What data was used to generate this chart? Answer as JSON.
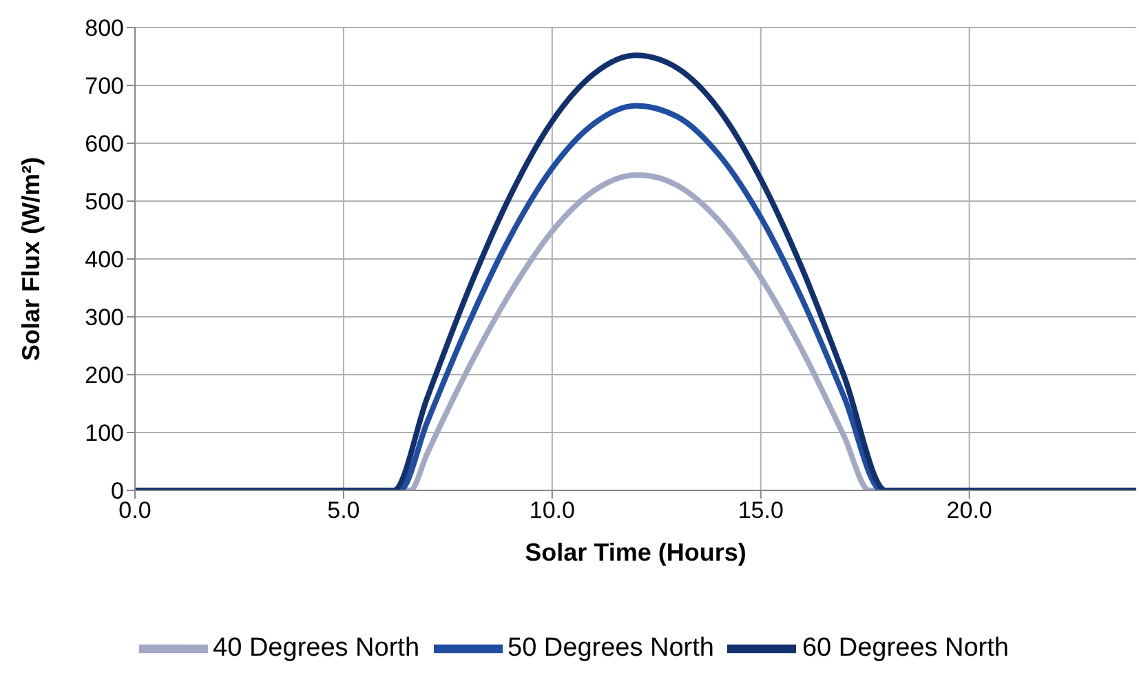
{
  "chart_data": {
    "type": "line",
    "xlabel": "Solar Time (Hours)",
    "ylabel": "Solar Flux (W/m²)",
    "xlim": [
      0,
      24
    ],
    "xticks": [
      {
        "value": 0,
        "label": "0.0"
      },
      {
        "value": 5,
        "label": "5.0"
      },
      {
        "value": 10,
        "label": "10.0"
      },
      {
        "value": 15,
        "label": "15.0"
      },
      {
        "value": 20,
        "label": "20.0"
      }
    ],
    "ylim": [
      0,
      800
    ],
    "yticks": [
      0,
      100,
      200,
      300,
      400,
      500,
      600,
      700,
      800
    ],
    "grid": true,
    "legend": "bottom",
    "marker": "none",
    "line_style": "solid",
    "series": [
      {
        "name": "40 Degrees North",
        "color": "#a3a8c4",
        "x": [
          0,
          6.6,
          7,
          8,
          9,
          10,
          11,
          12,
          12.1,
          13,
          14,
          15,
          16,
          17,
          17.6,
          24
        ],
        "values": [
          0,
          0,
          63,
          212,
          342,
          448,
          518,
          545,
          545,
          527,
          466,
          368,
          241,
          93,
          0,
          0
        ]
      },
      {
        "name": "50 Degrees North",
        "color": "#1f4ea3",
        "x": [
          0,
          6.35,
          7,
          8,
          9,
          10,
          11,
          12,
          13,
          14,
          15,
          16,
          17,
          17.9,
          24
        ],
        "values": [
          0,
          0,
          117,
          289,
          439,
          557,
          634,
          665,
          646,
          580,
          472,
          329,
          161,
          0,
          0
        ]
      },
      {
        "name": "60 Degrees North",
        "color": "#13306e",
        "x": [
          0,
          6.2,
          7,
          8,
          9,
          10,
          11,
          12,
          13,
          14,
          15,
          16,
          17,
          18,
          24
        ],
        "values": [
          0,
          0,
          159,
          347,
          510,
          638,
          720,
          752,
          730,
          658,
          538,
          382,
          197,
          0,
          0
        ]
      }
    ]
  }
}
